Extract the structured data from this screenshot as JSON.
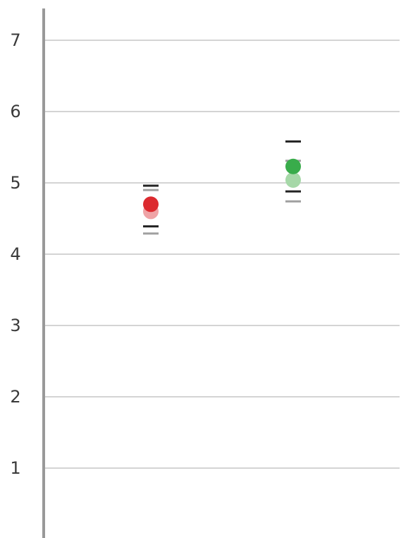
{
  "chart_data": {
    "type": "scatter",
    "title": "",
    "xlabel": "",
    "ylabel": "",
    "ylim": [
      0,
      7.4
    ],
    "yticks": [
      1,
      2,
      3,
      4,
      5,
      6,
      7
    ],
    "grid": true,
    "legend": "none",
    "groups": [
      {
        "color": "#dc2a2f",
        "light_color": "#efa3a6",
        "point": 4.7,
        "point_light": 4.6,
        "ci_upper": 4.96,
        "ci_lower": 4.39,
        "ci_upper_light": 4.9,
        "ci_lower_light": 4.29
      },
      {
        "color": "#39ac4b",
        "light_color": "#a6d8a8",
        "point": 5.23,
        "point_light": 5.04,
        "ci_upper": 5.58,
        "ci_lower": 4.88,
        "ci_upper_light": 5.31,
        "ci_lower_light": 4.74
      }
    ],
    "colors": {
      "axis": "#999999",
      "grid": "#d4d4d4",
      "ci_dark": "#222222",
      "ci_light": "#a0a0a0"
    }
  }
}
